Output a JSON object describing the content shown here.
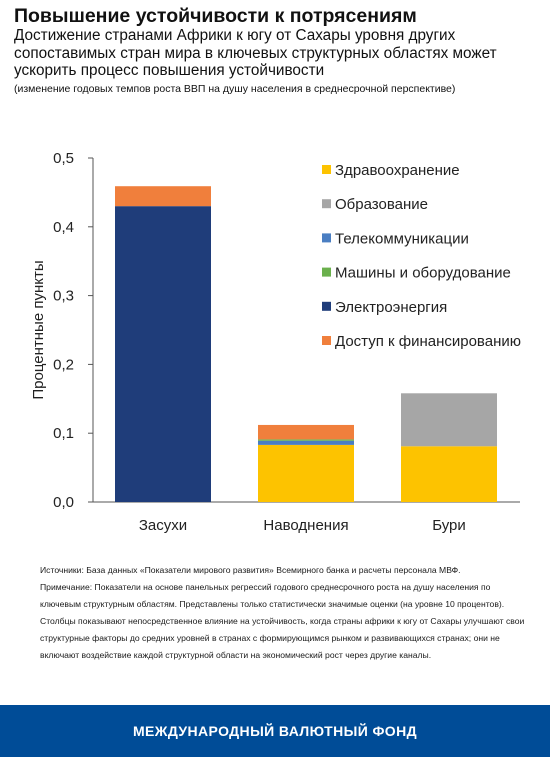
{
  "header": {
    "title": "Повышение устойчивости к потрясениям",
    "subtitle": "Достижение странами Африки к югу от Сахары уровня других сопоставимых стран мира в ключевых структурных областях может ускорить процесс повышения устойчивости",
    "note": "(изменение годовых темпов роста ВВП на душу населения в среднесрочной перспективе)"
  },
  "chart_data": {
    "type": "bar",
    "stacked": true,
    "title": "",
    "xlabel": "",
    "ylabel": "Процентные пункты",
    "ylim": [
      0,
      0.5
    ],
    "yticks": [
      0.0,
      0.1,
      0.2,
      0.3,
      0.4,
      0.5
    ],
    "ytick_labels": [
      "0,0",
      "0,1",
      "0,2",
      "0,3",
      "0,4",
      "0,5"
    ],
    "categories": [
      "Засухи",
      "Наводнения",
      "Бури"
    ],
    "series": [
      {
        "name": "Здравоохранение",
        "color": "#fdc300",
        "values": [
          0.0,
          0.083,
          0.081
        ]
      },
      {
        "name": "Образование",
        "color": "#a6a6a6",
        "values": [
          0.0,
          0.0,
          0.077
        ]
      },
      {
        "name": "Телекоммуникации",
        "color": "#4a7ec2",
        "values": [
          0.0,
          0.006,
          0.0
        ]
      },
      {
        "name": "Машины и оборудование",
        "color": "#6ab04c",
        "values": [
          0.0,
          0.002,
          0.0
        ]
      },
      {
        "name": "Электроэнергия",
        "color": "#1f3d7a",
        "values": [
          0.43,
          0.0,
          0.0
        ]
      },
      {
        "name": "Доступ к финансированию",
        "color": "#f07f3c",
        "values": [
          0.029,
          0.021,
          0.0
        ]
      }
    ],
    "grid": false,
    "legend_position": "right"
  },
  "sources": {
    "line1": "Источники: База данных «Показатели мирового развития» Всемирного банка и расчеты персонала МВФ.",
    "line2": "Примечание: Показатели на основе панельных регрессий годового среднесрочного роста на душу населения по ключевым структурным областям. Представлены только статистически значимые оценки (на уровне 10 процентов). Столбцы показывают непосредственное влияние на устойчивость, когда страны африки к югу от Сахары улучшают свои структурные факторы до средних уровней в странах с формирующимся рынком и развивающихся странах; они не включают воздействие каждой структурной области на экономический рост через другие каналы."
  },
  "footer": {
    "org_name": "МЕЖДУНАРОДНЫЙ ВАЛЮТНЫЙ ФОНД",
    "background": "#004c97"
  }
}
